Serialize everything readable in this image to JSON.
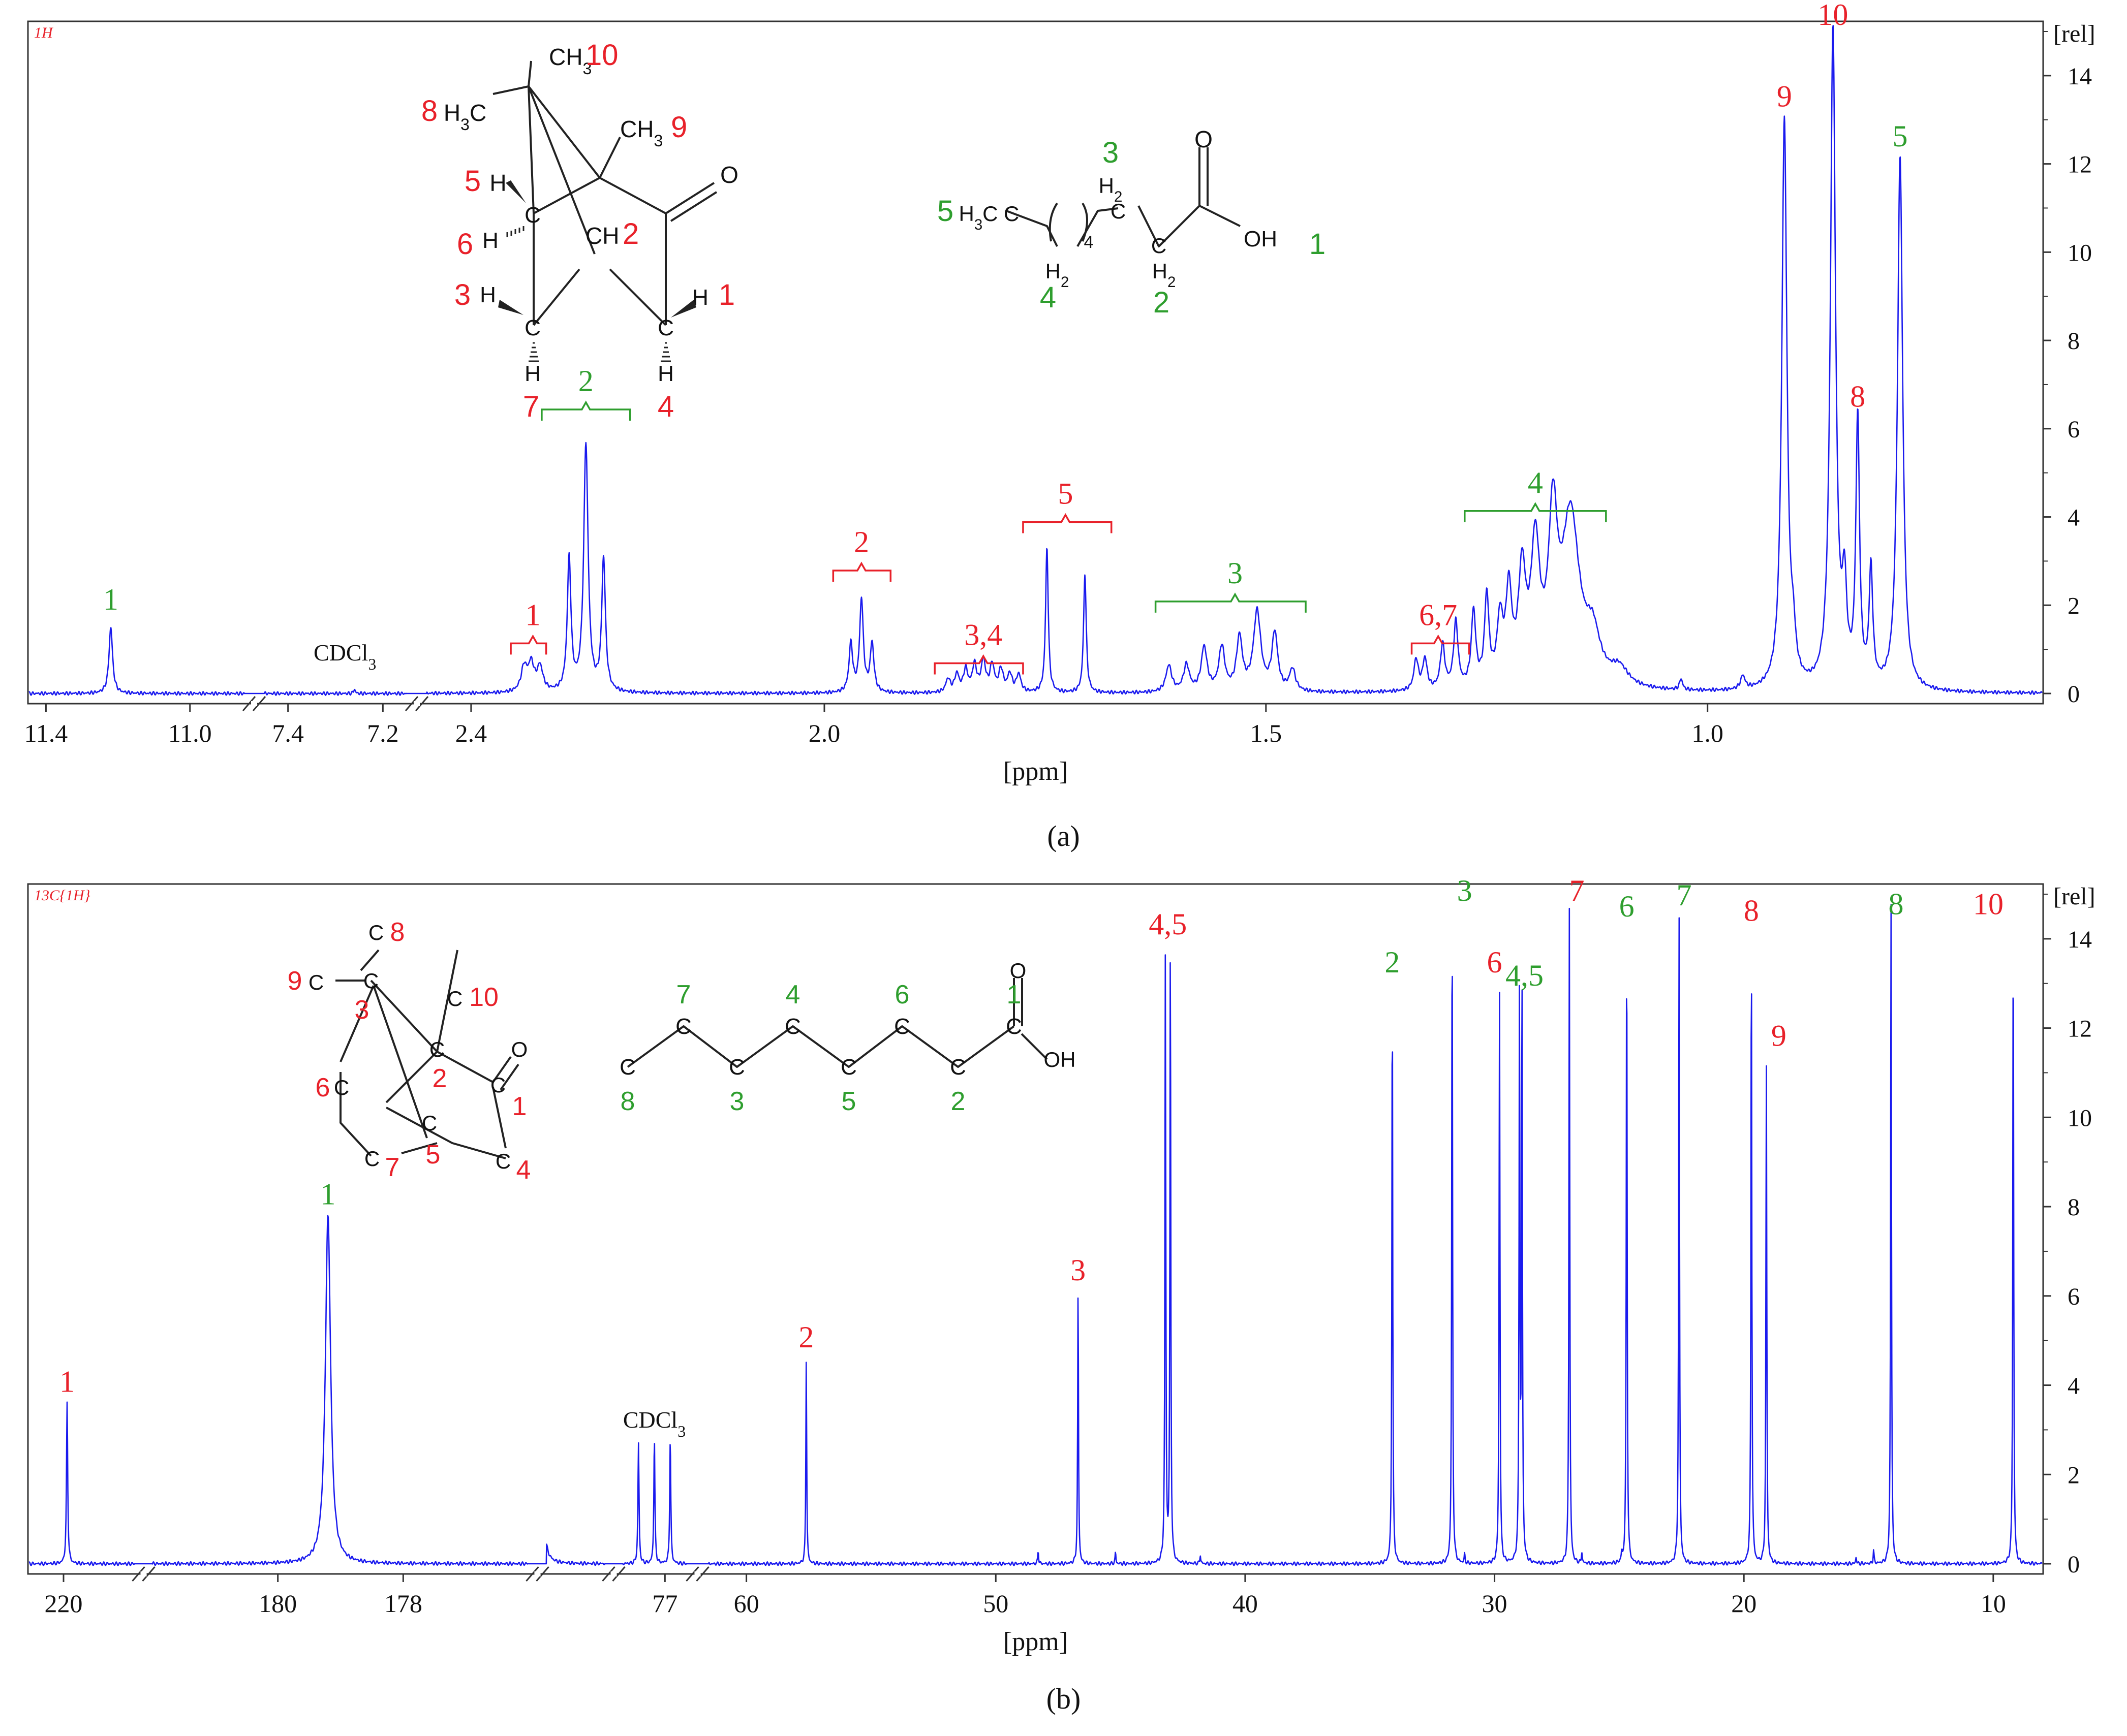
{
  "chart_data": [
    {
      "type": "line",
      "panel_label": "(a)",
      "spectrum_tag": "1H",
      "xlabel": "[ppm]",
      "ylabel": "[rel]",
      "ylim": [
        0,
        15
      ],
      "yticks": [
        0,
        2,
        4,
        6,
        8,
        10,
        12,
        14
      ],
      "xaxis_segments": [
        {
          "start": 11.45,
          "end": 10.85,
          "ticks": [
            {
              "v": 11.4,
              "label": "11.4"
            },
            {
              "v": 11.0,
              "label": "11.0"
            }
          ]
        },
        {
          "start": 7.45,
          "end": 7.15,
          "ticks": [
            {
              "v": 7.4,
              "label": "7.4"
            },
            {
              "v": 7.2,
              "label": "7.2"
            }
          ]
        },
        {
          "start": 2.45,
          "end": 0.62,
          "ticks": [
            {
              "v": 2.4,
              "label": "2.4"
            },
            {
              "v": 2.0,
              "label": "2.0"
            },
            {
              "v": 1.5,
              "label": "1.5"
            },
            {
              "v": 1.0,
              "label": "1.0"
            }
          ]
        }
      ],
      "peaks": [
        [
          11.22,
          1.5,
          0.006
        ],
        [
          7.26,
          0.1,
          0.002
        ],
        [
          2.34,
          0.55,
          0.004
        ],
        [
          2.332,
          0.6,
          0.004
        ],
        [
          2.322,
          0.55,
          0.004
        ],
        [
          2.289,
          3.0,
          0.0025
        ],
        [
          2.27,
          5.6,
          0.003
        ],
        [
          2.25,
          3.0,
          0.0025
        ],
        [
          1.97,
          1.1,
          0.0025
        ],
        [
          1.958,
          2.1,
          0.0025
        ],
        [
          1.946,
          1.1,
          0.0025
        ],
        [
          1.86,
          0.3,
          0.003
        ],
        [
          1.85,
          0.4,
          0.003
        ],
        [
          1.84,
          0.5,
          0.003
        ],
        [
          1.83,
          0.6,
          0.003
        ],
        [
          1.82,
          0.7,
          0.003
        ],
        [
          1.81,
          0.6,
          0.003
        ],
        [
          1.8,
          0.5,
          0.003
        ],
        [
          1.79,
          0.4,
          0.003
        ],
        [
          1.78,
          0.4,
          0.003
        ],
        [
          1.748,
          3.3,
          0.0018
        ],
        [
          1.705,
          2.7,
          0.0018
        ],
        [
          1.61,
          0.6,
          0.004
        ],
        [
          1.59,
          0.6,
          0.004
        ],
        [
          1.57,
          1.0,
          0.004
        ],
        [
          1.55,
          1.0,
          0.004
        ],
        [
          1.53,
          1.2,
          0.004
        ],
        [
          1.51,
          1.8,
          0.005
        ],
        [
          1.49,
          1.3,
          0.004
        ],
        [
          1.47,
          0.5,
          0.004
        ],
        [
          1.33,
          0.7,
          0.003
        ],
        [
          1.32,
          0.7,
          0.003
        ],
        [
          1.3,
          1.0,
          0.003
        ],
        [
          1.285,
          1.5,
          0.003
        ],
        [
          1.265,
          1.7,
          0.003
        ],
        [
          1.25,
          2.0,
          0.003
        ],
        [
          1.235,
          1.4,
          0.004
        ],
        [
          1.225,
          2.0,
          0.004
        ],
        [
          1.21,
          2.4,
          0.005
        ],
        [
          1.195,
          3.0,
          0.006
        ],
        [
          1.175,
          3.5,
          0.006
        ],
        [
          1.155,
          3.8,
          0.012
        ],
        [
          1.13,
          1.0,
          0.01
        ],
        [
          1.1,
          0.4,
          0.012
        ],
        [
          1.03,
          0.25,
          0.002
        ],
        [
          0.96,
          0.3,
          0.003
        ],
        [
          0.913,
          12.9,
          0.0035
        ],
        [
          0.903,
          0.8,
          0.003
        ],
        [
          0.858,
          14.9,
          0.0035
        ],
        [
          0.845,
          2.0,
          0.003
        ],
        [
          0.83,
          6.0,
          0.0025
        ],
        [
          0.815,
          2.6,
          0.0025
        ],
        [
          0.782,
          12.1,
          0.0035
        ]
      ],
      "annotations": [
        {
          "text": "1",
          "ppm": 11.22,
          "y": 1.9,
          "color": "#2e9e2e"
        },
        {
          "text": "CDCl3",
          "ppm": 7.28,
          "y": 0.75,
          "color": "#111111"
        },
        {
          "text": "1",
          "ppm": 2.33,
          "y": 1.55,
          "color": "#e8212a",
          "bracket": [
            2.355,
            2.315
          ]
        },
        {
          "text": "2",
          "ppm": 2.27,
          "y": 6.85,
          "color": "#2e9e2e",
          "bracket": [
            2.32,
            2.22
          ]
        },
        {
          "text": "2",
          "ppm": 1.958,
          "y": 3.2,
          "color": "#e8212a",
          "bracket": [
            1.99,
            1.925
          ]
        },
        {
          "text": "3,4",
          "ppm": 1.82,
          "y": 1.1,
          "color": "#e8212a",
          "bracket": [
            1.875,
            1.775
          ]
        },
        {
          "text": "5",
          "ppm": 1.727,
          "y": 4.3,
          "color": "#e8212a",
          "bracket": [
            1.775,
            1.675
          ]
        },
        {
          "text": "3",
          "ppm": 1.535,
          "y": 2.5,
          "color": "#2e9e2e",
          "bracket": [
            1.625,
            1.455
          ]
        },
        {
          "text": "6,7",
          "ppm": 1.305,
          "y": 1.55,
          "color": "#e8212a",
          "bracket": [
            1.335,
            1.27
          ]
        },
        {
          "text": "4",
          "ppm": 1.195,
          "y": 4.55,
          "color": "#2e9e2e",
          "bracket": [
            1.275,
            1.115
          ]
        },
        {
          "text": "9",
          "ppm": 0.913,
          "y": 13.3,
          "color": "#e8212a"
        },
        {
          "text": "10",
          "ppm": 0.858,
          "y": 15.15,
          "color": "#e8212a"
        },
        {
          "text": "8",
          "ppm": 0.83,
          "y": 6.5,
          "color": "#e8212a"
        },
        {
          "text": "5",
          "ppm": 0.782,
          "y": 12.4,
          "color": "#2e9e2e"
        }
      ],
      "molecule_labels": {
        "camphor": [
          {
            "text": "CH3",
            "color": "#111111"
          },
          {
            "text": "10",
            "color": "#e8212a"
          },
          {
            "text": "8",
            "color": "#e8212a"
          },
          {
            "text": "H3C",
            "color": "#111111"
          },
          {
            "text": "CH3",
            "color": "#111111"
          },
          {
            "text": "9",
            "color": "#e8212a"
          },
          {
            "text": "O",
            "color": "#111111"
          },
          {
            "text": "5",
            "color": "#e8212a"
          },
          {
            "text": "H",
            "color": "#111111"
          },
          {
            "text": "C",
            "color": "#111111"
          },
          {
            "text": "6",
            "color": "#e8212a"
          },
          {
            "text": "H",
            "color": "#111111"
          },
          {
            "text": "CH",
            "color": "#111111"
          },
          {
            "text": "2",
            "color": "#e8212a"
          },
          {
            "text": "3",
            "color": "#e8212a"
          },
          {
            "text": "H",
            "color": "#111111"
          },
          {
            "text": "C",
            "color": "#111111"
          },
          {
            "text": "C",
            "color": "#111111"
          },
          {
            "text": "H",
            "color": "#111111"
          },
          {
            "text": "1",
            "color": "#e8212a"
          },
          {
            "text": "H",
            "color": "#111111"
          },
          {
            "text": "7",
            "color": "#e8212a"
          },
          {
            "text": "H",
            "color": "#111111"
          },
          {
            "text": "4",
            "color": "#e8212a"
          }
        ],
        "octanoic_acid": [
          {
            "text": "3",
            "color": "#2e9e2e"
          },
          {
            "text": "H2",
            "color": "#111111"
          },
          {
            "text": "O",
            "color": "#111111"
          },
          {
            "text": "5",
            "color": "#2e9e2e"
          },
          {
            "text": "H3C",
            "color": "#111111"
          },
          {
            "text": "C",
            "color": "#111111"
          },
          {
            "text": "C",
            "color": "#111111"
          },
          {
            "text": "4",
            "color": "#111111"
          },
          {
            "text": "C",
            "color": "#111111"
          },
          {
            "text": "OH",
            "color": "#111111"
          },
          {
            "text": "1",
            "color": "#2e9e2e"
          },
          {
            "text": "H2",
            "color": "#111111"
          },
          {
            "text": "H2",
            "color": "#111111"
          },
          {
            "text": "4",
            "color": "#2e9e2e"
          },
          {
            "text": "2",
            "color": "#2e9e2e"
          }
        ]
      }
    },
    {
      "type": "line",
      "panel_label": "(b)",
      "spectrum_tag": "13C{1H}",
      "xlabel": "[ppm]",
      "ylabel": "[rel]",
      "ylim": [
        0,
        15
      ],
      "yticks": [
        0,
        2,
        4,
        6,
        8,
        10,
        12,
        14
      ],
      "xaxis_segments": [
        {
          "start": 221.0,
          "end": 218.0,
          "ticks": [
            {
              "v": 220,
              "label": "220"
            }
          ]
        },
        {
          "start": 182.0,
          "end": 176.0,
          "ticks": [
            {
              "v": 180,
              "label": "180"
            }
          ]
        },
        {
          "start": 179.0,
          "end": 177.0,
          "ticks": [
            {
              "v": 178,
              "label": "178"
            }
          ]
        },
        {
          "start": 77.8,
          "end": 76.6,
          "ticks": [
            {
              "v": 77,
              "label": "77"
            }
          ]
        },
        {
          "start": 61.5,
          "end": 8.0,
          "ticks": [
            {
              "v": 60,
              "label": "60"
            },
            {
              "v": 50,
              "label": "50"
            },
            {
              "v": 40,
              "label": "40"
            },
            {
              "v": 30,
              "label": "30"
            },
            {
              "v": 20,
              "label": "20"
            },
            {
              "v": 10,
              "label": "10"
            }
          ]
        }
      ],
      "peaks": [
        [
          219.9,
          3.6,
          0.02
        ],
        [
          179.2,
          7.8,
          0.05
        ],
        [
          77.5,
          2.7,
          0.012
        ],
        [
          77.2,
          2.8,
          0.012
        ],
        [
          76.9,
          2.8,
          0.012
        ],
        [
          57.6,
          4.6,
          0.02
        ],
        [
          46.7,
          6.1,
          0.02
        ],
        [
          43.2,
          13.8,
          0.02
        ],
        [
          43.0,
          13.9,
          0.02
        ],
        [
          34.1,
          13.0,
          0.02
        ],
        [
          31.7,
          14.8,
          0.02
        ],
        [
          29.8,
          13.0,
          0.02
        ],
        [
          29.0,
          12.7,
          0.02
        ],
        [
          28.9,
          13.0,
          0.02
        ],
        [
          27.0,
          14.7,
          0.02
        ],
        [
          24.7,
          14.3,
          0.02
        ],
        [
          22.6,
          14.6,
          0.02
        ],
        [
          19.7,
          14.1,
          0.02
        ],
        [
          19.1,
          11.3,
          0.02
        ],
        [
          14.1,
          14.8,
          0.02
        ],
        [
          9.2,
          14.5,
          0.02
        ],
        [
          48.3,
          0.3,
          0.02
        ],
        [
          45.2,
          0.25,
          0.02
        ],
        [
          41.8,
          0.2,
          0.02
        ],
        [
          31.2,
          0.2,
          0.02
        ],
        [
          26.5,
          0.25,
          0.02
        ],
        [
          24.9,
          0.2,
          0.02
        ],
        [
          15.5,
          0.15,
          0.02
        ],
        [
          14.8,
          0.3,
          0.02
        ]
      ],
      "annotations": [
        {
          "text": "1",
          "ppm": 219.9,
          "y": 3.85,
          "color": "#e8212a"
        },
        {
          "text": "1",
          "ppm": 179.2,
          "y": 8.05,
          "color": "#2e9e2e"
        },
        {
          "text": "CDCl3",
          "ppm": 77.2,
          "y": 3.05,
          "color": "#111111"
        },
        {
          "text": "2",
          "ppm": 57.6,
          "y": 4.85,
          "color": "#e8212a"
        },
        {
          "text": "3",
          "ppm": 46.7,
          "y": 6.35,
          "color": "#e8212a"
        },
        {
          "text": "4,5",
          "ppm": 43.1,
          "y": 14.1,
          "color": "#e8212a"
        },
        {
          "text": "2",
          "ppm": 34.1,
          "y": 13.25,
          "color": "#2e9e2e"
        },
        {
          "text": "3",
          "ppm": 31.2,
          "y": 14.85,
          "color": "#2e9e2e"
        },
        {
          "text": "6",
          "ppm": 30.0,
          "y": 13.25,
          "color": "#e8212a"
        },
        {
          "text": "4,5",
          "ppm": 28.8,
          "y": 12.95,
          "color": "#2e9e2e"
        },
        {
          "text": "7",
          "ppm": 26.7,
          "y": 14.85,
          "color": "#e8212a"
        },
        {
          "text": "6",
          "ppm": 24.7,
          "y": 14.5,
          "color": "#2e9e2e"
        },
        {
          "text": "7",
          "ppm": 22.4,
          "y": 14.75,
          "color": "#2e9e2e"
        },
        {
          "text": "8",
          "ppm": 19.7,
          "y": 14.4,
          "color": "#e8212a"
        },
        {
          "text": "9",
          "ppm": 18.6,
          "y": 11.6,
          "color": "#e8212a"
        },
        {
          "text": "8",
          "ppm": 13.9,
          "y": 14.55,
          "color": "#2e9e2e"
        },
        {
          "text": "10",
          "ppm": 10.2,
          "y": 14.55,
          "color": "#e8212a"
        }
      ],
      "molecule_labels": {
        "camphor": [
          {
            "text": "C",
            "color": "#111111"
          },
          {
            "text": "8",
            "color": "#e8212a"
          },
          {
            "text": "9",
            "color": "#e8212a"
          },
          {
            "text": "C",
            "color": "#111111"
          },
          {
            "text": "C",
            "color": "#111111"
          },
          {
            "text": "3",
            "color": "#e8212a"
          },
          {
            "text": "C",
            "color": "#111111"
          },
          {
            "text": "10",
            "color": "#e8212a"
          },
          {
            "text": "C",
            "color": "#111111"
          },
          {
            "text": "2",
            "color": "#e8212a"
          },
          {
            "text": "O",
            "color": "#111111"
          },
          {
            "text": "C",
            "color": "#111111"
          },
          {
            "text": "1",
            "color": "#e8212a"
          },
          {
            "text": "6",
            "color": "#e8212a"
          },
          {
            "text": "C",
            "color": "#111111"
          },
          {
            "text": "C",
            "color": "#111111"
          },
          {
            "text": "5",
            "color": "#e8212a"
          },
          {
            "text": "C",
            "color": "#111111"
          },
          {
            "text": "7",
            "color": "#e8212a"
          },
          {
            "text": "C",
            "color": "#111111"
          },
          {
            "text": "4",
            "color": "#e8212a"
          }
        ],
        "octanoic_acid": [
          {
            "text": "C",
            "color": "#111111"
          },
          {
            "text": "8",
            "color": "#2e9e2e"
          },
          {
            "text": "C",
            "color": "#111111"
          },
          {
            "text": "7",
            "color": "#2e9e2e"
          },
          {
            "text": "C",
            "color": "#111111"
          },
          {
            "text": "3",
            "color": "#2e9e2e"
          },
          {
            "text": "C",
            "color": "#111111"
          },
          {
            "text": "4",
            "color": "#2e9e2e"
          },
          {
            "text": "C",
            "color": "#111111"
          },
          {
            "text": "5",
            "color": "#2e9e2e"
          },
          {
            "text": "C",
            "color": "#111111"
          },
          {
            "text": "6",
            "color": "#2e9e2e"
          },
          {
            "text": "C",
            "color": "#111111"
          },
          {
            "text": "2",
            "color": "#2e9e2e"
          },
          {
            "text": "C",
            "color": "#111111"
          },
          {
            "text": "1",
            "color": "#2e9e2e"
          },
          {
            "text": "O",
            "color": "#111111"
          },
          {
            "text": "OH",
            "color": "#111111"
          }
        ]
      }
    }
  ],
  "colors": {
    "spectrum": "#1a1aee",
    "frame": "#333333",
    "red_label": "#e8212a",
    "green_label": "#2e9e2e",
    "tag": "#e8212a"
  }
}
